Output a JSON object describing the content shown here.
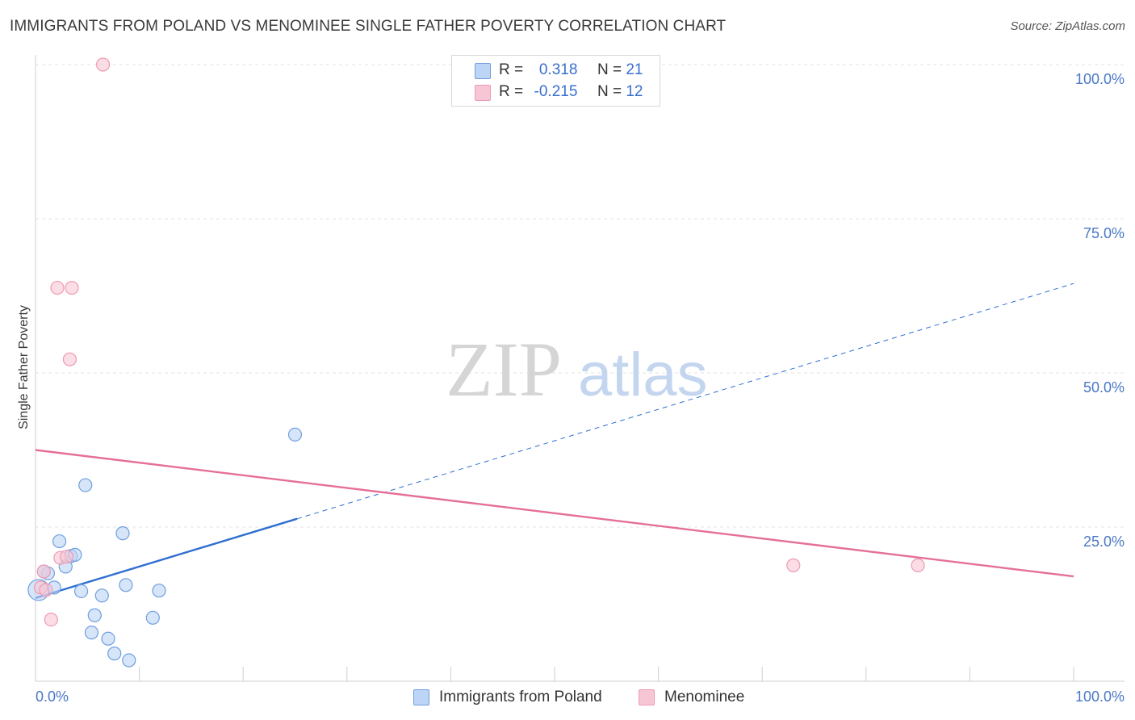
{
  "chart_data": {
    "type": "scatter",
    "title": "IMMIGRANTS FROM POLAND VS MENOMINEE SINGLE FATHER POVERTY CORRELATION CHART",
    "source": "Source: ZipAtlas.com",
    "watermark": {
      "zip": "ZIP",
      "atlas": "atlas"
    },
    "ylabel": "Single Father Poverty",
    "xlabel": "",
    "xlim": [
      0,
      100
    ],
    "ylim": [
      0,
      100
    ],
    "x_tick_labels": {
      "min": "0.0%",
      "max": "100.0%"
    },
    "y_ticks": [
      {
        "value": 25,
        "label": "25.0%"
      },
      {
        "value": 50,
        "label": "50.0%"
      },
      {
        "value": 75,
        "label": "75.0%"
      },
      {
        "value": 100,
        "label": "100.0%"
      }
    ],
    "grid": true,
    "legend": {
      "position": "top-center",
      "rows": [
        {
          "r_label": "R =",
          "r_value": "0.318",
          "n_label": "N =",
          "n_value": "21"
        },
        {
          "r_label": "R =",
          "r_value": "-0.215",
          "n_label": "N =",
          "n_value": "12"
        }
      ]
    },
    "series": [
      {
        "name": "Immigrants from Poland",
        "color": "#6f9fe0",
        "fill": "#bcd4f5",
        "line_color": "#2f6fd0",
        "trend": {
          "x0": 0,
          "y0": 13.5,
          "x1": 100,
          "y1": 64.5,
          "solid_until_x": 25.2
        },
        "points": [
          {
            "x": 0.3,
            "y": 14.8,
            "big": true
          },
          {
            "x": 1.2,
            "y": 17.5
          },
          {
            "x": 1.8,
            "y": 15.2
          },
          {
            "x": 2.3,
            "y": 22.7
          },
          {
            "x": 2.9,
            "y": 18.6
          },
          {
            "x": 3.4,
            "y": 20.3
          },
          {
            "x": 3.8,
            "y": 20.5
          },
          {
            "x": 4.4,
            "y": 14.6
          },
          {
            "x": 4.8,
            "y": 31.8
          },
          {
            "x": 5.4,
            "y": 7.9
          },
          {
            "x": 5.7,
            "y": 10.7
          },
          {
            "x": 6.4,
            "y": 13.9
          },
          {
            "x": 7.0,
            "y": 6.9
          },
          {
            "x": 7.6,
            "y": 4.5
          },
          {
            "x": 8.4,
            "y": 24.0
          },
          {
            "x": 8.7,
            "y": 15.6
          },
          {
            "x": 9.0,
            "y": 3.4
          },
          {
            "x": 11.3,
            "y": 10.3
          },
          {
            "x": 11.9,
            "y": 14.7
          },
          {
            "x": 0.8,
            "y": 17.8
          },
          {
            "x": 25.0,
            "y": 40.0
          }
        ]
      },
      {
        "name": "Menominee",
        "color": "#ee9ab4",
        "fill": "#f7c6d4",
        "line_color": "#e56f98",
        "trend": {
          "x0": 0,
          "y0": 37.5,
          "x1": 100,
          "y1": 17.0,
          "solid_until_x": 100
        },
        "points": [
          {
            "x": 0.5,
            "y": 15.2
          },
          {
            "x": 0.8,
            "y": 17.8
          },
          {
            "x": 1.5,
            "y": 10.0
          },
          {
            "x": 2.1,
            "y": 63.8
          },
          {
            "x": 2.4,
            "y": 20.0
          },
          {
            "x": 3.0,
            "y": 20.2
          },
          {
            "x": 3.3,
            "y": 52.2
          },
          {
            "x": 3.5,
            "y": 63.8
          },
          {
            "x": 6.5,
            "y": 100.0
          },
          {
            "x": 73.0,
            "y": 18.8
          },
          {
            "x": 85.0,
            "y": 18.8
          },
          {
            "x": 1.0,
            "y": 14.8
          }
        ]
      }
    ]
  }
}
